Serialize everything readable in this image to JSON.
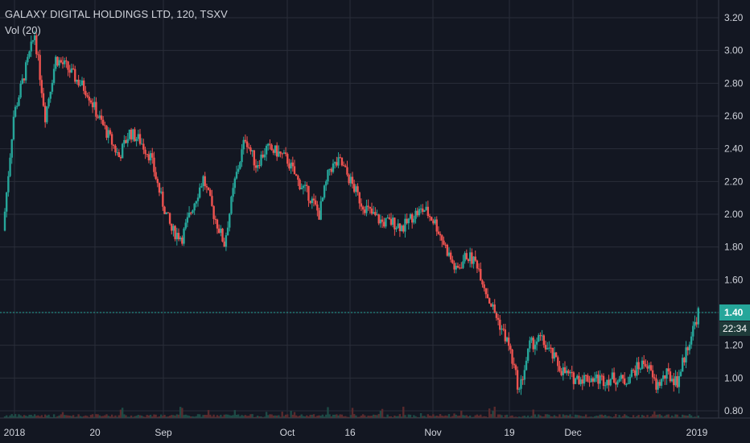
{
  "header": {
    "symbol_line": "GALAXY DIGITAL HOLDINGS LTD, 120, TSXV",
    "volume_label": "Vol (20)"
  },
  "price_axis": {
    "ticks": [
      "3.20",
      "3.00",
      "2.80",
      "2.60",
      "2.40",
      "2.20",
      "2.00",
      "1.80",
      "1.60",
      "1.40",
      "1.20",
      "1.00",
      "0.80"
    ]
  },
  "time_axis": {
    "ticks": [
      "2018",
      "20",
      "Sep",
      "Oct",
      "16",
      "Nov",
      "19",
      "Dec",
      "2019"
    ]
  },
  "last_price": {
    "price": "1.40",
    "countdown": "22:34"
  },
  "colors": {
    "background": "#131722",
    "grid": "#2a2e39",
    "up": "#26a69a",
    "down": "#ef5350",
    "last_price_line": "#26a69a",
    "text": "#d1d4dc"
  },
  "chart_data": {
    "type": "candlestick",
    "title": "GALAXY DIGITAL HOLDINGS LTD, 120, TSXV",
    "ylim": [
      0.8,
      3.2
    ],
    "x_ticks": [
      "2018",
      "20",
      "Sep",
      "Oct",
      "16",
      "Nov",
      "19",
      "Dec",
      "2019"
    ],
    "last_price": 1.4,
    "grid": true,
    "price_series": [
      {
        "t": "2018",
        "close": 1.9
      },
      {
        "close": 2.6
      },
      {
        "close": 2.85
      },
      {
        "close": 3.1
      },
      {
        "close": 2.6
      },
      {
        "close": 2.95
      },
      {
        "close": 2.9
      },
      {
        "close": 2.82
      },
      {
        "t": "20",
        "close": 2.75
      },
      {
        "close": 2.6
      },
      {
        "close": 2.48
      },
      {
        "close": 2.35
      },
      {
        "close": 2.5
      },
      {
        "t": "Sep",
        "close": 2.45
      },
      {
        "close": 2.35
      },
      {
        "close": 2.1
      },
      {
        "close": 1.9
      },
      {
        "close": 1.86
      },
      {
        "close": 2.05
      },
      {
        "close": 2.22
      },
      {
        "close": 2.0
      },
      {
        "close": 1.82
      },
      {
        "close": 2.2
      },
      {
        "close": 2.47
      },
      {
        "close": 2.3
      },
      {
        "t": "Oct",
        "close": 2.4
      },
      {
        "close": 2.38
      },
      {
        "close": 2.33
      },
      {
        "close": 2.2
      },
      {
        "close": 2.12
      },
      {
        "close": 2.0
      },
      {
        "t": "16",
        "close": 2.28
      },
      {
        "close": 2.32
      },
      {
        "close": 2.2
      },
      {
        "close": 2.07
      },
      {
        "close": 2.0
      },
      {
        "close": 1.95
      },
      {
        "t": "Nov",
        "close": 1.95
      },
      {
        "close": 1.92
      },
      {
        "close": 2.0
      },
      {
        "close": 2.03
      },
      {
        "close": 1.95
      },
      {
        "close": 1.8
      },
      {
        "close": 1.65
      },
      {
        "close": 1.75
      },
      {
        "t": "19",
        "close": 1.7
      },
      {
        "close": 1.5
      },
      {
        "close": 1.35
      },
      {
        "close": 1.2
      },
      {
        "close": 0.92
      },
      {
        "close": 1.2
      },
      {
        "close": 1.24
      },
      {
        "t": "Dec",
        "close": 1.15
      },
      {
        "close": 1.05
      },
      {
        "close": 1.0
      },
      {
        "close": 1.0
      },
      {
        "close": 1.0
      },
      {
        "close": 0.99
      },
      {
        "close": 1.0
      },
      {
        "close": 0.98
      },
      {
        "close": 1.05
      },
      {
        "close": 1.1
      },
      {
        "close": 0.95
      },
      {
        "close": 1.02
      },
      {
        "close": 0.98
      },
      {
        "close": 1.2
      },
      {
        "t": "2019",
        "close": 1.4
      }
    ]
  }
}
